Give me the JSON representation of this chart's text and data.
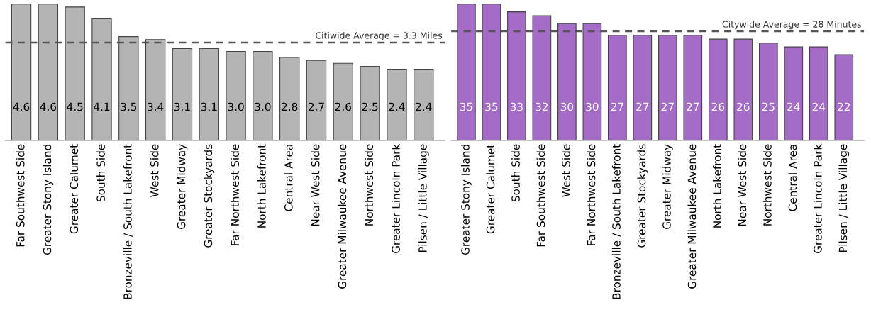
{
  "chart_data": [
    {
      "type": "bar",
      "categories": [
        "Far Southwest Side",
        "Greater Stony Island",
        "Greater Calumet",
        "South Side",
        "Bronzeville / South Lakefront",
        "West Side",
        "Greater Midway",
        "Greater Stockyards",
        "Far Northwest Side",
        "North Lakefront",
        "Central Area",
        "Near West Side",
        "Greater Milwaukee Avenue",
        "Northwest Side",
        "Greater Lincoln Park",
        "Pilsen / Little Village"
      ],
      "series": [
        {
          "color": "#b4b4b4",
          "values": [
            4.6,
            4.6,
            4.5,
            4.1,
            3.5,
            3.4,
            3.1,
            3.1,
            3.0,
            3.0,
            2.8,
            2.7,
            2.6,
            2.5,
            2.4,
            2.4
          ],
          "value_labels": [
            "4.6",
            "4.6",
            "4.5",
            "4.1",
            "3.5",
            "3.4",
            "3.1",
            "3.1",
            "3.0",
            "3.0",
            "2.8",
            "2.7",
            "2.6",
            "2.5",
            "2.4",
            "2.4"
          ]
        }
      ],
      "tick_labels": "x",
      "grid": false,
      "legend": false,
      "ref_lines": [
        {
          "axis": "y",
          "value": 3.3,
          "label": "Citiwide Average = 3.3 Miles",
          "color": "#555555",
          "line_style": "dashed"
        }
      ]
    },
    {
      "type": "bar",
      "categories": [
        "Greater Stony Island",
        "Greater Calumet",
        "South Side",
        "Far Southwest Side",
        "West Side",
        "Far Northwest Side",
        "Bronzeville / South Lakefront",
        "Greater Stockyards",
        "Greater Midway",
        "Greater Milwaukee Avenue",
        "North Lakefront",
        "Near West Side",
        "Northwest Side",
        "Central Area",
        "Greater Lincoln Park",
        "Pilsen / Little Village"
      ],
      "series": [
        {
          "color": "#a46cc6",
          "values": [
            35,
            35,
            33,
            32,
            30,
            30,
            27,
            27,
            27,
            27,
            26,
            26,
            25,
            24,
            24,
            22
          ],
          "value_labels": [
            "35",
            "35",
            "33",
            "32",
            "30",
            "30",
            "27",
            "27",
            "27",
            "27",
            "26",
            "26",
            "25",
            "24",
            "24",
            "22"
          ]
        }
      ],
      "tick_labels": "x",
      "grid": false,
      "legend": false,
      "ref_lines": [
        {
          "axis": "y",
          "value": 28,
          "label": "Citywide Average = 28 Minutes",
          "color": "#555555",
          "line_style": "dashed"
        }
      ]
    }
  ]
}
